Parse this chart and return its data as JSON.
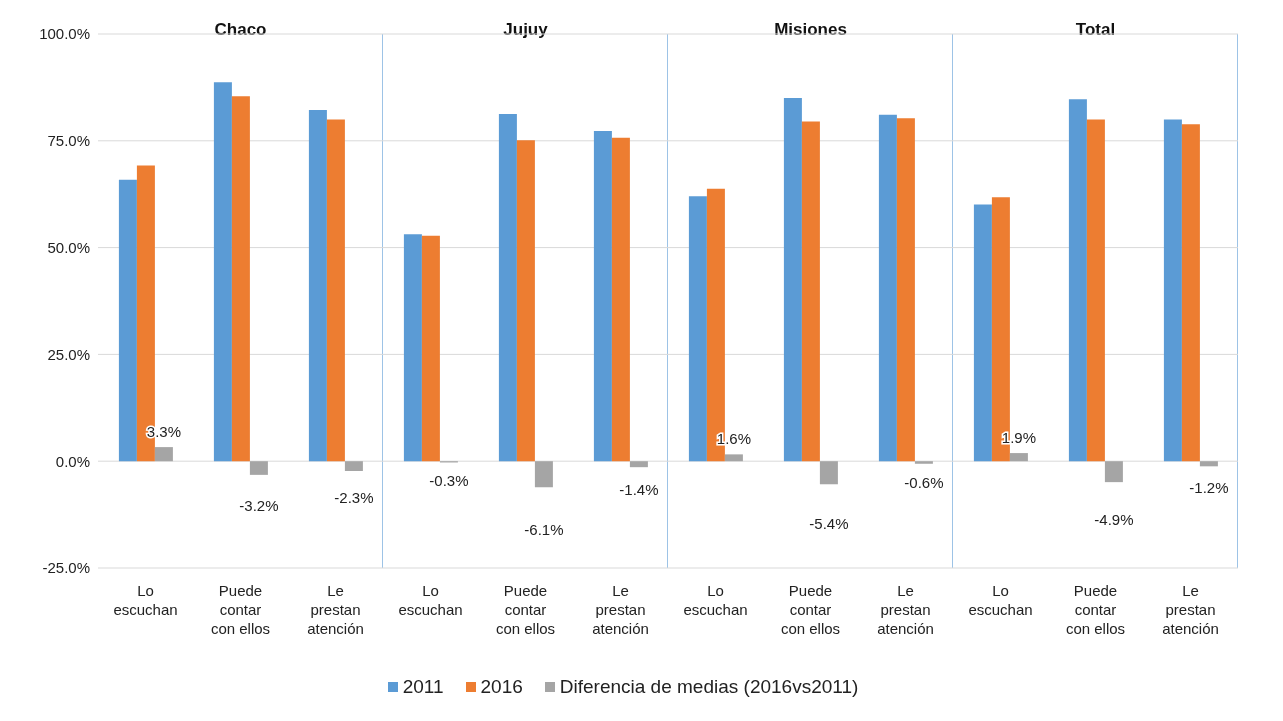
{
  "chart_data": [
    {
      "type": "bar",
      "title": "Chaco",
      "categories": [
        "Lo escuchan",
        "Puede contar con ellos",
        "Le prestan atención"
      ],
      "series": [
        {
          "name": "2011",
          "color": "#5b9bd5",
          "values": [
            65.9,
            88.7,
            82.2
          ]
        },
        {
          "name": "2016",
          "color": "#ed7d31",
          "values": [
            69.2,
            85.4,
            80.0
          ]
        },
        {
          "name": "Diferencia de medias (2016vs2011)",
          "color": "#a5a5a5",
          "values": [
            3.3,
            -3.2,
            -2.3
          ],
          "value_labels": [
            "3.3%",
            "-3.2%",
            "-2.3%"
          ]
        }
      ],
      "ylim": [
        -25,
        100
      ],
      "yticks": [
        {
          "value": -25,
          "label": "-25.0%"
        },
        {
          "value": 0,
          "label": "0.0%"
        },
        {
          "value": 25,
          "label": "25.0%"
        },
        {
          "value": 50,
          "label": "50.0%"
        },
        {
          "value": 75,
          "label": "75.0%"
        },
        {
          "value": 100,
          "label": "100.0%"
        }
      ],
      "grid": "y",
      "legend": "bottom"
    },
    {
      "type": "bar",
      "title": "Jujuy",
      "categories": [
        "Lo escuchan",
        "Puede contar con ellos",
        "Le prestan atención"
      ],
      "series": [
        {
          "color": "#5b9bd5",
          "values": [
            53.1,
            81.3,
            77.3
          ]
        },
        {
          "color": "#ed7d31",
          "values": [
            52.8,
            75.1,
            75.7
          ]
        },
        {
          "color": "#a5a5a5",
          "values": [
            -0.3,
            -6.1,
            -1.4
          ],
          "value_labels": [
            "-0.3%",
            "-6.1%",
            "-1.4%"
          ]
        }
      ],
      "ylim": [
        -25,
        100
      ],
      "yticks": [
        -25,
        0,
        25,
        50,
        75,
        100
      ],
      "grid": "y",
      "tick_labels": "x"
    },
    {
      "type": "bar",
      "title": "Misiones",
      "categories": [
        "Lo escuchan",
        "Puede contar con ellos",
        "Le prestan atención"
      ],
      "series": [
        {
          "color": "#5b9bd5",
          "values": [
            62.0,
            85.0,
            81.1
          ]
        },
        {
          "color": "#ed7d31",
          "values": [
            63.8,
            79.5,
            80.3
          ]
        },
        {
          "color": "#a5a5a5",
          "values": [
            1.6,
            -5.4,
            -0.6
          ],
          "value_labels": [
            "1.6%",
            "-5.4%",
            "-0.6%"
          ]
        }
      ],
      "ylim": [
        -25,
        100
      ],
      "yticks": [
        -25,
        0,
        25,
        50,
        75,
        100
      ],
      "grid": "y",
      "tick_labels": "x"
    },
    {
      "type": "bar",
      "title": "Total",
      "categories": [
        "Lo escuchan",
        "Puede contar con ellos",
        "Le prestan atención"
      ],
      "series": [
        {
          "color": "#5b9bd5",
          "values": [
            60.1,
            84.7,
            80.0
          ]
        },
        {
          "color": "#ed7d31",
          "values": [
            61.8,
            80.0,
            78.9
          ]
        },
        {
          "color": "#a5a5a5",
          "values": [
            1.9,
            -4.9,
            -1.2
          ],
          "value_labels": [
            "1.9%",
            "-4.9%",
            "-1.2%"
          ]
        }
      ],
      "ylim": [
        -25,
        100
      ],
      "yticks": [
        -25,
        0,
        25,
        50,
        75,
        100
      ],
      "grid": "y",
      "tick_labels": "x"
    }
  ]
}
